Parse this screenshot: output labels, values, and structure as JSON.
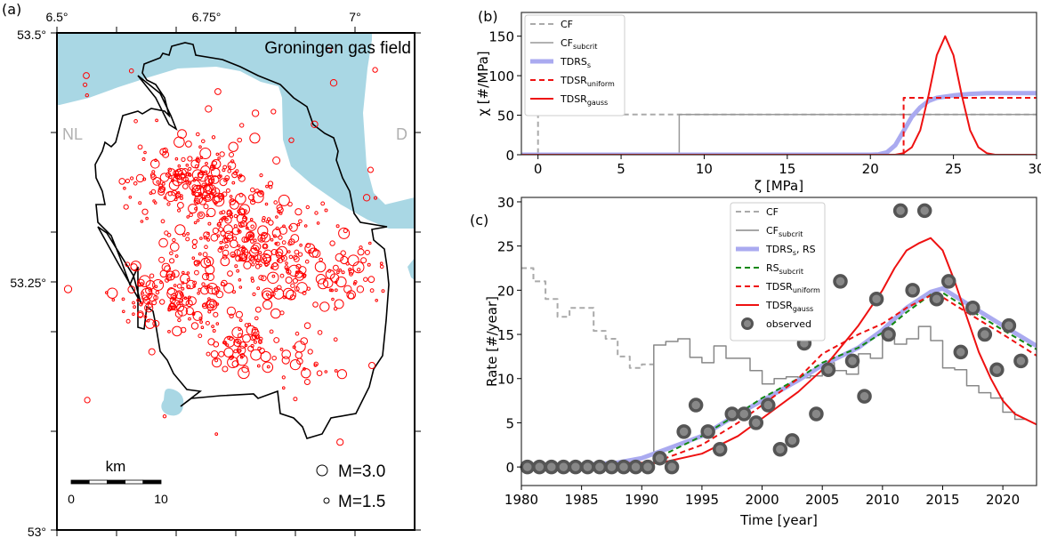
{
  "panel_labels": {
    "a": "(a)",
    "b": "(b)",
    "c": "(c)"
  },
  "map": {
    "title": "Groningen gas field",
    "lon_ticks": [
      "6.5°",
      "6.75°",
      "7°"
    ],
    "lat_ticks": [
      "53.5°",
      "53.25°",
      "53°"
    ],
    "country_left": "NL",
    "country_right": "D",
    "scale_unit": "km",
    "scale_ticks": [
      "0",
      "10"
    ],
    "legend": [
      {
        "label": "M=3.0",
        "magnitude": 3.0
      },
      {
        "label": "M=1.5",
        "magnitude": 1.5
      }
    ],
    "colors": {
      "sea": "#a9d7e4",
      "events": "#ff0000",
      "outline": "#000000"
    }
  },
  "chart_data": [
    {
      "id": "b",
      "type": "line",
      "xlabel": "ζ   [MPa]",
      "ylabel": "χ   [#/MPa]",
      "xlim": [
        -1,
        30
      ],
      "ylim": [
        0,
        180
      ],
      "xticks": [
        "0",
        "5",
        "10",
        "15",
        "20",
        "25",
        "30"
      ],
      "xtick_values": [
        0,
        5,
        10,
        15,
        20,
        25,
        30
      ],
      "yticks": [
        "0",
        "50",
        "100",
        "150"
      ],
      "ytick_values": [
        0,
        50,
        100,
        150
      ],
      "legend_position": "top-left",
      "series": [
        {
          "name": "CF",
          "sub": "",
          "color": "#aaaaaa",
          "style": "dashed",
          "width": 2,
          "points": [
            [
              -1,
              0
            ],
            [
              0,
              0
            ],
            [
              0,
              51
            ],
            [
              30,
              51
            ]
          ]
        },
        {
          "name": "CF",
          "sub": "subcrit",
          "color": "#999999",
          "style": "solid",
          "width": 1.5,
          "points": [
            [
              -1,
              0
            ],
            [
              8.5,
              0
            ],
            [
              8.5,
              51
            ],
            [
              30,
              51
            ]
          ]
        },
        {
          "name": "TDRS",
          "sub": "s",
          "color": "#aaaaf0",
          "style": "solid",
          "width": 5,
          "points": [
            [
              -1,
              0
            ],
            [
              20,
              0
            ],
            [
              20.5,
              0.5
            ],
            [
              21,
              3
            ],
            [
              21.5,
              12
            ],
            [
              22,
              30
            ],
            [
              22.5,
              48
            ],
            [
              23,
              60
            ],
            [
              23.5,
              68
            ],
            [
              24,
              72
            ],
            [
              25,
              75
            ],
            [
              26,
              77
            ],
            [
              27,
              78
            ],
            [
              30,
              78
            ]
          ]
        },
        {
          "name": "TDSR",
          "sub": "uniform",
          "color": "#ee1111",
          "style": "dashed",
          "width": 2,
          "points": [
            [
              -1,
              0
            ],
            [
              22,
              0
            ],
            [
              22,
              72
            ],
            [
              30,
              72
            ]
          ]
        },
        {
          "name": "TDSR",
          "sub": "gauss",
          "color": "#ee1111",
          "style": "solid",
          "width": 2,
          "points": [
            [
              -1,
              0
            ],
            [
              21.5,
              0
            ],
            [
              22,
              2
            ],
            [
              22.5,
              9.4
            ],
            [
              23,
              31
            ],
            [
              23.5,
              75
            ],
            [
              24,
              126
            ],
            [
              24.5,
              150
            ],
            [
              25,
              126
            ],
            [
              25.5,
              75
            ],
            [
              26,
              31
            ],
            [
              26.5,
              9.4
            ],
            [
              27,
              2
            ],
            [
              27.5,
              0
            ],
            [
              30,
              0
            ]
          ]
        }
      ]
    },
    {
      "id": "c",
      "type": "line",
      "xlabel": "Time   [year]",
      "ylabel": "Rate   [#/year]",
      "xlim": [
        1980,
        2022.8
      ],
      "ylim": [
        -2.1,
        30.5
      ],
      "xticks": [
        "1980",
        "1985",
        "1990",
        "1995",
        "2000",
        "2005",
        "2010",
        "2015",
        "2020"
      ],
      "xtick_values": [
        1980,
        1985,
        1990,
        1995,
        2000,
        2005,
        2010,
        2015,
        2020
      ],
      "yticks": [
        "0",
        "5",
        "10",
        "15",
        "20",
        "25",
        "30"
      ],
      "ytick_values": [
        0,
        5,
        10,
        15,
        20,
        25,
        30
      ],
      "legend_position": "top-center",
      "series": [
        {
          "name": "CF",
          "sub": "",
          "color": "#aaaaaa",
          "style": "dashed",
          "width": 2,
          "step": true,
          "x": [
            1980,
            1981,
            1982,
            1983,
            1984,
            1985,
            1986,
            1987,
            1988,
            1989,
            1990,
            1991
          ],
          "y": [
            22.5,
            21,
            19,
            17,
            18,
            18,
            15.4,
            14.5,
            12.5,
            11.2,
            11.6,
            11.6
          ]
        },
        {
          "name": "CF",
          "sub": "subcrit",
          "color": "#888888",
          "style": "solid",
          "width": 1.5,
          "step": true,
          "x": [
            1980,
            1991,
            1992,
            1993,
            1994,
            1995,
            1996,
            1997,
            1998,
            1999,
            2000,
            2001,
            2002,
            2003,
            2004,
            2005,
            2006,
            2007,
            2008,
            2009,
            2010,
            2011,
            2012,
            2013,
            2014,
            2015,
            2016,
            2017,
            2018,
            2019,
            2020,
            2021,
            2022
          ],
          "y": [
            0,
            13.8,
            14.2,
            14.5,
            12.4,
            11.8,
            13.7,
            12.3,
            12.3,
            10.9,
            9.4,
            10,
            10.2,
            10.1,
            10.3,
            11.8,
            10.9,
            10.5,
            12.8,
            12.3,
            14.8,
            13.9,
            14.5,
            15.9,
            14.3,
            11.2,
            11,
            9.2,
            8.4,
            7.8,
            6.2,
            5.4,
            5.4
          ]
        },
        {
          "name": "TDRS",
          "sub": "s",
          "extra": ", RS",
          "color": "#aaaaf0",
          "style": "solid",
          "width": 5,
          "x": [
            1980,
            1985,
            1988,
            1990,
            1992,
            1995,
            1998,
            2000,
            2003,
            2005,
            2008,
            2010,
            2012,
            2014,
            2015,
            2017,
            2020,
            2022.8
          ],
          "y": [
            0,
            0.2,
            0.5,
            1,
            2,
            3.5,
            6,
            7.5,
            9.8,
            11.5,
            13.5,
            15.5,
            18,
            19.8,
            20.2,
            18.5,
            16,
            13.7
          ]
        },
        {
          "name": "RS",
          "sub": "subcrit",
          "color": "#118811",
          "style": "dashed",
          "width": 2,
          "x": [
            1980,
            1991,
            1992,
            1995,
            1998,
            2000,
            2003,
            2005,
            2008,
            2010,
            2012,
            2014,
            2015,
            2017,
            2020,
            2022.8
          ],
          "y": [
            0,
            0.3,
            1.5,
            3.5,
            6,
            7.8,
            10,
            11.8,
            13.5,
            15.2,
            17.5,
            19.5,
            19.7,
            18,
            15.5,
            13.3
          ]
        },
        {
          "name": "TDSR",
          "sub": "uniform",
          "color": "#ee1111",
          "style": "dashed",
          "width": 2,
          "x": [
            1980,
            1990,
            1992,
            1995,
            1998,
            2000,
            2003,
            2005,
            2008,
            2010,
            2012,
            2014,
            2015,
            2017,
            2020,
            2022.8
          ],
          "y": [
            0,
            0.5,
            1,
            2.5,
            5,
            7,
            10,
            12.8,
            15,
            16.2,
            18,
            19.4,
            19.2,
            17.5,
            15,
            12.6
          ]
        },
        {
          "name": "TDSR",
          "sub": "gauss",
          "color": "#ee1111",
          "style": "solid",
          "width": 2,
          "x": [
            1980,
            1990,
            1992,
            1995,
            1998,
            2000,
            2003,
            2005,
            2008,
            2010,
            2011,
            2012,
            2013,
            2014,
            2015,
            2016,
            2017,
            2018,
            2019,
            2020,
            2021,
            2022.8
          ],
          "y": [
            0,
            0.3,
            0.6,
            1.5,
            3.5,
            5.5,
            8.5,
            11,
            16,
            20,
            22.5,
            24.5,
            25.3,
            25.9,
            24.5,
            21,
            17,
            13,
            10,
            7.5,
            6,
            4.8
          ]
        }
      ],
      "observed": {
        "name": "observed",
        "color": "#555555",
        "x": [
          1980.5,
          1981.5,
          1982.5,
          1983.5,
          1984.5,
          1985.5,
          1986.5,
          1987.5,
          1988.5,
          1989.5,
          1990.5,
          1991.5,
          1992.5,
          1993.5,
          1994.5,
          1995.5,
          1996.5,
          1997.5,
          1998.5,
          1999.5,
          2000.5,
          2001.5,
          2002.5,
          2003.5,
          2004.5,
          2005.5,
          2006.5,
          2007.5,
          2008.5,
          2009.5,
          2010.5,
          2011.5,
          2012.5,
          2013.5,
          2014.5,
          2015.5,
          2016.5,
          2017.5,
          2018.5,
          2019.5,
          2020.5,
          2021.5
        ],
        "y": [
          0,
          0,
          0,
          0,
          0,
          0,
          0,
          0,
          0,
          0,
          0,
          1,
          0,
          4,
          7,
          4,
          2,
          6,
          6,
          5,
          7,
          2,
          3,
          14,
          6,
          11,
          21,
          12,
          8,
          19,
          15,
          29,
          20,
          29,
          19,
          21,
          13,
          18,
          15,
          11,
          16,
          12
        ]
      }
    }
  ]
}
